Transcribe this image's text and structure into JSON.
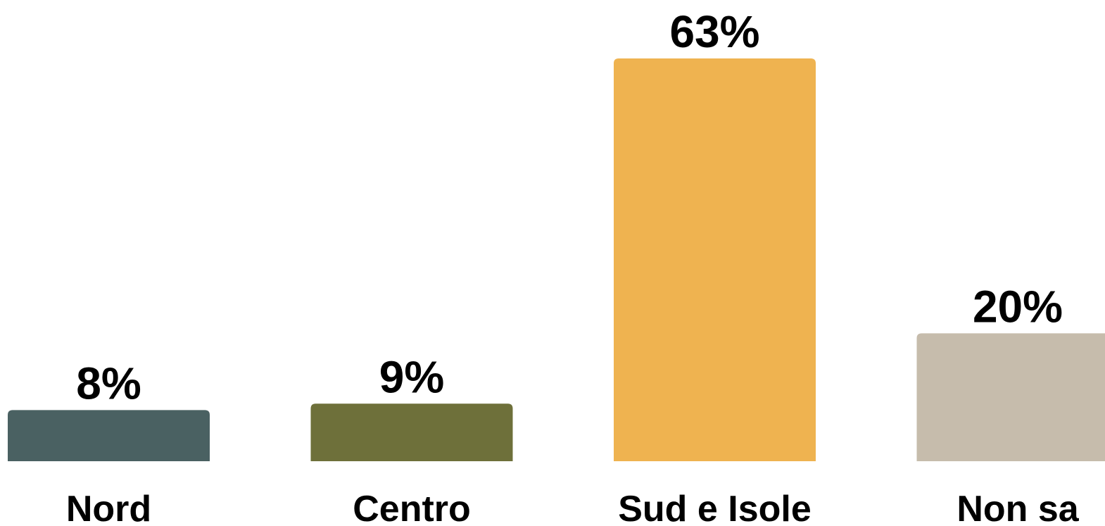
{
  "chart_data": {
    "type": "bar",
    "categories": [
      "Nord",
      "Centro",
      "Sud e Isole",
      "Non sa"
    ],
    "values": [
      8,
      9,
      63,
      20
    ],
    "value_labels": [
      "8%",
      "9%",
      "63%",
      "20%"
    ],
    "colors": [
      "#4a6162",
      "#6e703a",
      "#efb350",
      "#c6bcac"
    ],
    "unit": "%",
    "ylim": [
      0,
      63
    ],
    "grid": false,
    "legend": "none"
  }
}
